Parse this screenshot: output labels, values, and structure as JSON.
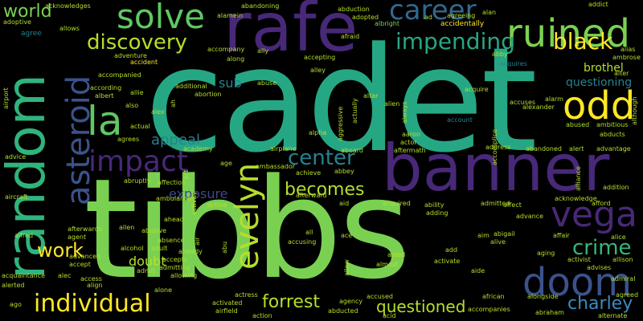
{
  "word_cloud": {
    "background": "#000000",
    "words": [
      {
        "text": "cadet",
        "color": "#26a784"
      },
      {
        "text": "tibbs",
        "color": "#7ad151"
      },
      {
        "text": "banner",
        "color": "#482878"
      },
      {
        "text": "rafe",
        "color": "#482878"
      },
      {
        "text": "random",
        "color": "#2fb47c"
      },
      {
        "text": "ruined",
        "color": "#7ad151"
      },
      {
        "text": "solve",
        "color": "#5ec962"
      },
      {
        "text": "odd",
        "color": "#fde725"
      },
      {
        "text": "vega",
        "color": "#482878"
      },
      {
        "text": "doom",
        "color": "#3b528b"
      },
      {
        "text": "asteroid",
        "color": "#3b528b"
      },
      {
        "text": "la",
        "color": "#5ec962"
      },
      {
        "text": "evelyn",
        "color": "#b5de2b"
      },
      {
        "text": "impact",
        "color": "#482878"
      },
      {
        "text": "career",
        "color": "#31688e"
      },
      {
        "text": "discovery",
        "color": "#b5de2b"
      },
      {
        "text": "impending",
        "color": "#26a784"
      },
      {
        "text": "black",
        "color": "#fde725"
      },
      {
        "text": "individual",
        "color": "#fde725"
      },
      {
        "text": "crime",
        "color": "#35b779"
      },
      {
        "text": "charley",
        "color": "#3b8bc2"
      },
      {
        "text": "questioned",
        "color": "#b5de2b"
      },
      {
        "text": "forrest",
        "color": "#b5de2b"
      },
      {
        "text": "center",
        "color": "#26828e"
      },
      {
        "text": "becomes",
        "color": "#b5de2b"
      },
      {
        "text": "work",
        "color": "#fde725"
      },
      {
        "text": "world",
        "color": "#7ad151"
      },
      {
        "text": "appeal",
        "color": "#26828e"
      },
      {
        "text": "exposure",
        "color": "#3e4989"
      },
      {
        "text": "brothel",
        "color": "#b5de2b"
      },
      {
        "text": "questioning",
        "color": "#26828e"
      },
      {
        "text": "sub",
        "color": "#26828e"
      },
      {
        "text": "doubt",
        "color": "#b5de2b"
      },
      {
        "text": "acknowledges",
        "color": "#b5de2b"
      },
      {
        "text": "adoptive",
        "color": "#b5de2b"
      },
      {
        "text": "allows",
        "color": "#b5de2b"
      },
      {
        "text": "abandoning",
        "color": "#b5de2b"
      },
      {
        "text": "alamein",
        "color": "#b5de2b"
      },
      {
        "text": "abduction",
        "color": "#b5de2b"
      },
      {
        "text": "adopted",
        "color": "#b5de2b"
      },
      {
        "text": "albright",
        "color": "#7ad151"
      },
      {
        "text": "accidentally",
        "color": "#fde725"
      },
      {
        "text": "agreeing",
        "color": "#b5de2b"
      },
      {
        "text": "alan",
        "color": "#b5de2b"
      },
      {
        "text": "ad",
        "color": "#b5de2b"
      },
      {
        "text": "addict",
        "color": "#b5de2b"
      },
      {
        "text": "afraid",
        "color": "#b5de2b"
      },
      {
        "text": "agree",
        "color": "#26828e"
      },
      {
        "text": "adventure",
        "color": "#b5de2b"
      },
      {
        "text": "accident",
        "color": "#fde725"
      },
      {
        "text": "accompany",
        "color": "#b5de2b"
      },
      {
        "text": "ally",
        "color": "#b5de2b"
      },
      {
        "text": "abby",
        "color": "#b5de2b"
      },
      {
        "text": "along",
        "color": "#b5de2b"
      },
      {
        "text": "accepting",
        "color": "#b5de2b"
      },
      {
        "text": "alley",
        "color": "#b5de2b"
      },
      {
        "text": "acquires",
        "color": "#26828e"
      },
      {
        "text": "alias",
        "color": "#b5de2b"
      },
      {
        "text": "ambrose",
        "color": "#b5de2b"
      },
      {
        "text": "alter",
        "color": "#b5de2b"
      },
      {
        "text": "according",
        "color": "#b5de2b"
      },
      {
        "text": "accompanied",
        "color": "#b5de2b"
      },
      {
        "text": "albert",
        "color": "#b5de2b"
      },
      {
        "text": "allie",
        "color": "#b5de2b"
      },
      {
        "text": "also",
        "color": "#b5de2b"
      },
      {
        "text": "abuse",
        "color": "#b5de2b"
      },
      {
        "text": "additional",
        "color": "#b5de2b"
      },
      {
        "text": "abortion",
        "color": "#b5de2b"
      },
      {
        "text": "alien",
        "color": "#b5de2b"
      },
      {
        "text": "altar",
        "color": "#b5de2b"
      },
      {
        "text": "acquire",
        "color": "#b5de2b"
      },
      {
        "text": "account",
        "color": "#26828e"
      },
      {
        "text": "accuses",
        "color": "#b5de2b"
      },
      {
        "text": "alarm",
        "color": "#b5de2b"
      },
      {
        "text": "abused",
        "color": "#b5de2b"
      },
      {
        "text": "ambitious",
        "color": "#b5de2b"
      },
      {
        "text": "abducts",
        "color": "#b5de2b"
      },
      {
        "text": "advantage",
        "color": "#b5de2b"
      },
      {
        "text": "alexander",
        "color": "#b5de2b"
      },
      {
        "text": "actual",
        "color": "#b5de2b"
      },
      {
        "text": "alex",
        "color": "#b5de2b"
      },
      {
        "text": "aaron",
        "color": "#b5de2b"
      },
      {
        "text": "actor",
        "color": "#b5de2b"
      },
      {
        "text": "alpha",
        "color": "#b5de2b"
      },
      {
        "text": "academy",
        "color": "#b5de2b"
      },
      {
        "text": "airplane",
        "color": "#b5de2b"
      },
      {
        "text": "aboard",
        "color": "#b5de2b"
      },
      {
        "text": "aftermath",
        "color": "#b5de2b"
      },
      {
        "text": "address",
        "color": "#b5de2b"
      },
      {
        "text": "abandoned",
        "color": "#b5de2b"
      },
      {
        "text": "alert",
        "color": "#b5de2b"
      },
      {
        "text": "agrees",
        "color": "#b5de2b"
      },
      {
        "text": "advice",
        "color": "#b5de2b"
      },
      {
        "text": "age",
        "color": "#b5de2b"
      },
      {
        "text": "ambassador",
        "color": "#b5de2b"
      },
      {
        "text": "abbey",
        "color": "#b5de2b"
      },
      {
        "text": "achieve",
        "color": "#b5de2b"
      },
      {
        "text": "abruptly",
        "color": "#b5de2b"
      },
      {
        "text": "affection",
        "color": "#b5de2b"
      },
      {
        "text": "ambulance",
        "color": "#b5de2b"
      },
      {
        "text": "active",
        "color": "#b5de2b"
      },
      {
        "text": "afterward",
        "color": "#b5de2b"
      },
      {
        "text": "aid",
        "color": "#b5de2b"
      },
      {
        "text": "acquired",
        "color": "#b5de2b"
      },
      {
        "text": "ability",
        "color": "#b5de2b"
      },
      {
        "text": "adding",
        "color": "#b5de2b"
      },
      {
        "text": "affect",
        "color": "#b5de2b"
      },
      {
        "text": "advance",
        "color": "#b5de2b"
      },
      {
        "text": "acknowledge",
        "color": "#b5de2b"
      },
      {
        "text": "afford",
        "color": "#b5de2b"
      },
      {
        "text": "addition",
        "color": "#b5de2b"
      },
      {
        "text": "aircraft",
        "color": "#b5de2b"
      },
      {
        "text": "ahead",
        "color": "#b5de2b"
      },
      {
        "text": "afterwards",
        "color": "#b5de2b"
      },
      {
        "text": "allen",
        "color": "#b5de2b"
      },
      {
        "text": "abusive",
        "color": "#b5de2b"
      },
      {
        "text": "alfred",
        "color": "#b5de2b"
      },
      {
        "text": "agent",
        "color": "#b5de2b"
      },
      {
        "text": "absence",
        "color": "#b5de2b"
      },
      {
        "text": "all",
        "color": "#b5de2b"
      },
      {
        "text": "ace",
        "color": "#b5de2b"
      },
      {
        "text": "aim",
        "color": "#b5de2b"
      },
      {
        "text": "abigail",
        "color": "#b5de2b"
      },
      {
        "text": "alive",
        "color": "#b5de2b"
      },
      {
        "text": "affair",
        "color": "#b5de2b"
      },
      {
        "text": "alice",
        "color": "#b5de2b"
      },
      {
        "text": "alcohol",
        "color": "#b5de2b"
      },
      {
        "text": "adult",
        "color": "#b5de2b"
      },
      {
        "text": "already",
        "color": "#b5de2b"
      },
      {
        "text": "accusing",
        "color": "#b5de2b"
      },
      {
        "text": "aided",
        "color": "#b5de2b"
      },
      {
        "text": "add",
        "color": "#b5de2b"
      },
      {
        "text": "aging",
        "color": "#b5de2b"
      },
      {
        "text": "activist",
        "color": "#b5de2b"
      },
      {
        "text": "allison",
        "color": "#b5de2b"
      },
      {
        "text": "advanced",
        "color": "#b5de2b"
      },
      {
        "text": "accept",
        "color": "#b5de2b"
      },
      {
        "text": "accepts",
        "color": "#b5de2b"
      },
      {
        "text": "admitting",
        "color": "#b5de2b"
      },
      {
        "text": "allowing",
        "color": "#b5de2b"
      },
      {
        "text": "admit",
        "color": "#b5de2b"
      },
      {
        "text": "almost",
        "color": "#b5de2b"
      },
      {
        "text": "activate",
        "color": "#b5de2b"
      },
      {
        "text": "aide",
        "color": "#b5de2b"
      },
      {
        "text": "advises",
        "color": "#b5de2b"
      },
      {
        "text": "acquaintance",
        "color": "#b5de2b"
      },
      {
        "text": "alec",
        "color": "#b5de2b"
      },
      {
        "text": "access",
        "color": "#b5de2b"
      },
      {
        "text": "align",
        "color": "#b5de2b"
      },
      {
        "text": "admiral",
        "color": "#b5de2b"
      },
      {
        "text": "alerted",
        "color": "#b5de2b"
      },
      {
        "text": "agreed",
        "color": "#b5de2b"
      },
      {
        "text": "alone",
        "color": "#b5de2b"
      },
      {
        "text": "ago",
        "color": "#b5de2b"
      },
      {
        "text": "activated",
        "color": "#b5de2b"
      },
      {
        "text": "actress",
        "color": "#b5de2b"
      },
      {
        "text": "agency",
        "color": "#b5de2b"
      },
      {
        "text": "accused",
        "color": "#b5de2b"
      },
      {
        "text": "african",
        "color": "#b5de2b"
      },
      {
        "text": "alongside",
        "color": "#b5de2b"
      },
      {
        "text": "airfield",
        "color": "#b5de2b"
      },
      {
        "text": "abducted",
        "color": "#b5de2b"
      },
      {
        "text": "acid",
        "color": "#b5de2b"
      },
      {
        "text": "action",
        "color": "#b5de2b"
      },
      {
        "text": "accompanies",
        "color": "#b5de2b"
      },
      {
        "text": "abraham",
        "color": "#b5de2b"
      },
      {
        "text": "alternate",
        "color": "#b5de2b"
      },
      {
        "text": "admitted",
        "color": "#b5de2b"
      },
      {
        "text": "airport",
        "color": "#b5de2b"
      },
      {
        "text": "although",
        "color": "#b5de2b"
      },
      {
        "text": "accomplice",
        "color": "#b5de2b"
      },
      {
        "text": "alliance",
        "color": "#b5de2b"
      },
      {
        "text": "aggressive",
        "color": "#b5de2b"
      },
      {
        "text": "actually",
        "color": "#b5de2b"
      },
      {
        "text": "always",
        "color": "#b5de2b"
      },
      {
        "text": "act",
        "color": "#b5de2b"
      },
      {
        "text": "activity",
        "color": "#b5de2b"
      },
      {
        "text": "abu",
        "color": "#b5de2b"
      },
      {
        "text": "air",
        "color": "#b5de2b"
      },
      {
        "text": "ah",
        "color": "#b5de2b"
      },
      {
        "text": "allow",
        "color": "#b5de2b"
      }
    ]
  }
}
